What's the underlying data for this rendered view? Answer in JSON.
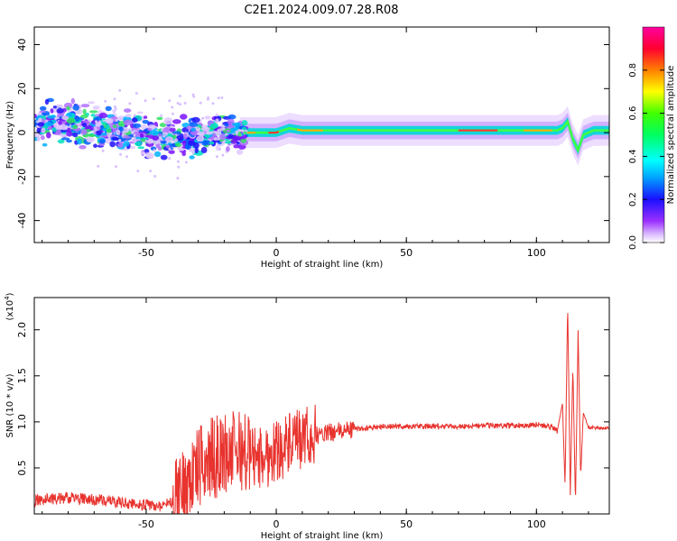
{
  "title": "C2E1.2024.009.07.28.R08",
  "chart_data": [
    {
      "type": "heatmap",
      "xlabel": "Height of straight line (km)",
      "ylabel": "Frequency (Hz)",
      "xlim": [
        -93,
        128
      ],
      "ylim": [
        -50,
        48
      ],
      "xticks": [
        "-50",
        "0",
        "50",
        "100"
      ],
      "yticks": [
        "-40",
        "-20",
        "0",
        "20",
        "40"
      ],
      "colorbar": {
        "label": "Normalized spectral amplitude",
        "range": [
          0.0,
          1.0
        ],
        "ticks": [
          "0.0",
          "0.2",
          "0.4",
          "0.6",
          "0.8"
        ]
      },
      "ridge": {
        "x": [
          -93,
          -80,
          -70,
          -60,
          -50,
          -40,
          -30,
          -20,
          -15,
          -10,
          0,
          5,
          10,
          20,
          30,
          50,
          70,
          90,
          105,
          108,
          110,
          112,
          114,
          116,
          118,
          122,
          128
        ],
        "y": [
          5,
          4,
          3,
          1,
          -2,
          -3,
          -2,
          0,
          0,
          0,
          0,
          2,
          1,
          1,
          1,
          1,
          1,
          1,
          1,
          1,
          2,
          5,
          -3,
          -8,
          -1,
          1,
          1
        ]
      }
    },
    {
      "type": "line",
      "xlabel": "Height of straight line (km)",
      "ylabel": "SNR (10 * v/v)",
      "yscale_label": "(x10",
      "yscale_exp": "4",
      "yscale_close": ")",
      "xlim": [
        -93,
        128
      ],
      "ylim": [
        0,
        2.35
      ],
      "xticks": [
        "-50",
        "0",
        "50",
        "100"
      ],
      "yticks": [
        "0.5",
        "1.0",
        "1.5",
        "2.0"
      ],
      "color": "#e8332e",
      "series": [
        {
          "x": [
            -93,
            -80,
            -70,
            -60,
            -50,
            -45,
            -40,
            -35,
            -30,
            -25,
            -20,
            -15,
            -10,
            -5,
            0,
            5,
            10,
            15,
            20,
            30,
            40,
            50,
            60,
            70,
            80,
            90,
            100,
            105,
            108,
            110,
            111,
            112,
            113,
            114,
            115,
            116,
            117,
            118,
            120,
            128
          ],
          "y": [
            0.12,
            0.15,
            0.13,
            0.1,
            0.07,
            0.06,
            0.1,
            0.3,
            0.5,
            0.6,
            0.65,
            0.7,
            0.65,
            0.6,
            0.7,
            0.75,
            0.8,
            0.85,
            0.88,
            0.92,
            0.95,
            0.95,
            0.95,
            0.95,
            0.96,
            0.96,
            0.97,
            0.95,
            0.9,
            1.2,
            0.3,
            2.3,
            0.2,
            1.6,
            0.1,
            2.0,
            0.4,
            1.1,
            0.94,
            0.93
          ]
        }
      ]
    }
  ]
}
